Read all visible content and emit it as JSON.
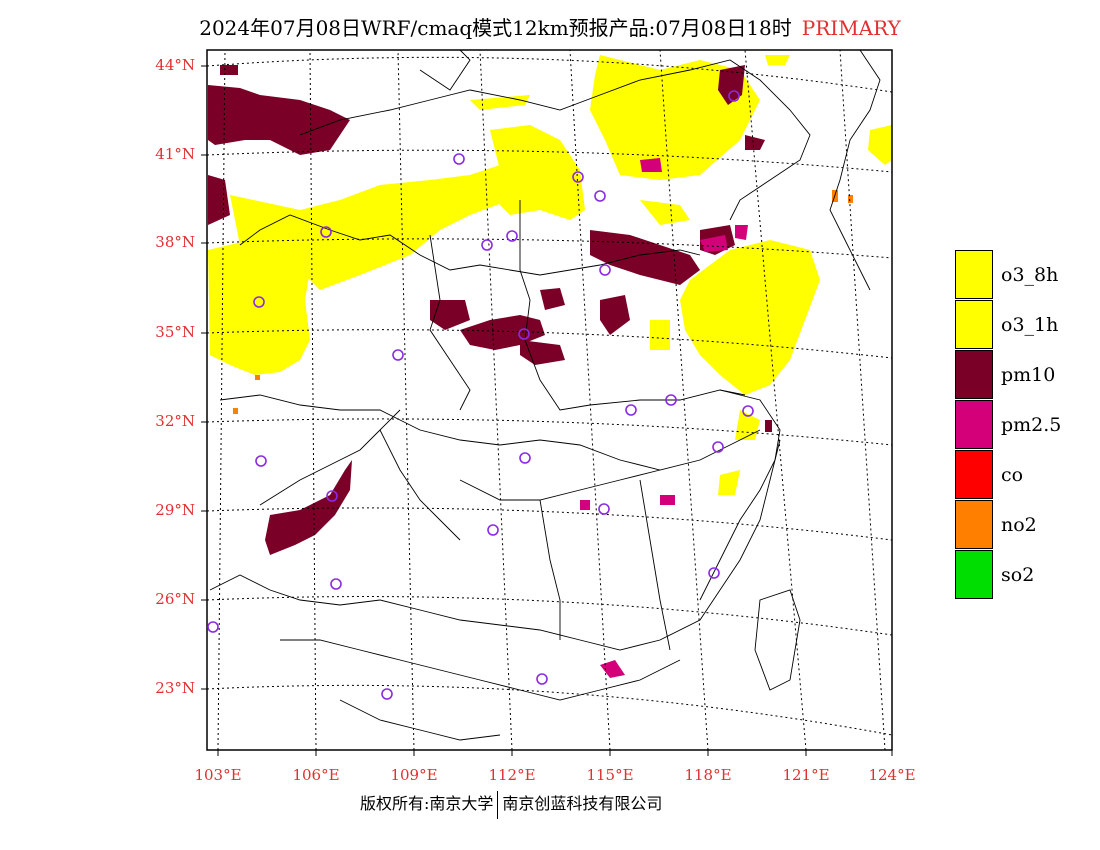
{
  "title": "2024年07月08日WRF/cmaq模式12km预报产品:07月08日18时",
  "title_tag": "PRIMARY",
  "lat_labels": [
    "44°N",
    "41°N",
    "38°N",
    "35°N",
    "32°N",
    "29°N",
    "26°N",
    "23°N"
  ],
  "lon_labels": [
    "103°E",
    "106°E",
    "109°E",
    "112°E",
    "115°E",
    "118°E",
    "121°E",
    "124°E"
  ],
  "legend": [
    {
      "label": "o3_8h",
      "color": "#ffff00"
    },
    {
      "label": "o3_1h",
      "color": "#ffff00"
    },
    {
      "label": "pm10",
      "color": "#7a0028"
    },
    {
      "label": "pm2.5",
      "color": "#d4007a"
    },
    {
      "label": "co",
      "color": "#ff0000"
    },
    {
      "label": "no2",
      "color": "#ff7f00"
    },
    {
      "label": "so2",
      "color": "#00dd00"
    }
  ],
  "footer_left": "版权所有:南京大学",
  "footer_right": "南京创蓝科技有限公司",
  "colors": {
    "axis_label": "#e03030",
    "o3": "#ffff00",
    "pm10": "#7a0028",
    "pm25": "#d4007a",
    "no2": "#ff7f00",
    "station": "#8a2be2"
  }
}
